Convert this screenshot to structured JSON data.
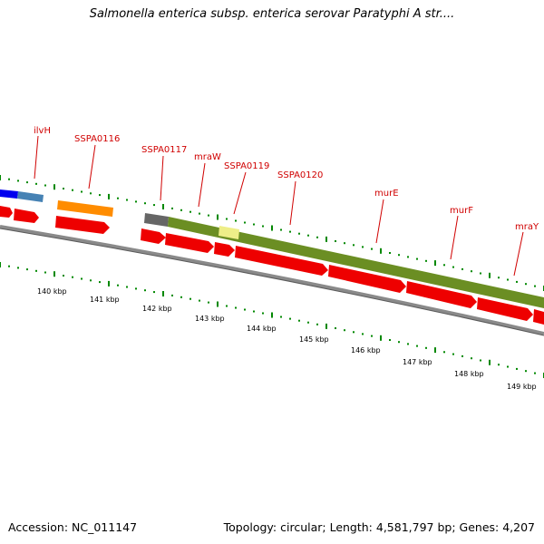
{
  "title": "Salmonella enterica subsp. enterica serovar Paratyphi A str....",
  "footer": {
    "accession": "Accession: NC_011147",
    "summary": "Topology: circular; Length: 4,581,797 bp; Genes: 4,207"
  },
  "genome_map": {
    "labels": [
      {
        "id": "ilvH",
        "text": "ilvH"
      },
      {
        "id": "SSPA0116",
        "text": "SSPA0116"
      },
      {
        "id": "SSPA0117",
        "text": "SSPA0117"
      },
      {
        "id": "mraW",
        "text": "mraW"
      },
      {
        "id": "SSPA0119",
        "text": "SSPA0119"
      },
      {
        "id": "SSPA0120",
        "text": "SSPA0120"
      },
      {
        "id": "murE",
        "text": "murE"
      },
      {
        "id": "murF",
        "text": "murF"
      },
      {
        "id": "mraY",
        "text": "mraY"
      }
    ],
    "scale_ticks": [
      "140 kbp",
      "141 kbp",
      "142 kbp",
      "143 kbp",
      "144 kbp",
      "145 kbp",
      "146 kbp",
      "147 kbp",
      "148 kbp",
      "149 kbp"
    ],
    "colors": {
      "gene_label": "#d00000",
      "arrow_red": "#ee0000",
      "operon_green": "#6b8e23",
      "orange": "#ff8c00",
      "blue": "#0000ee",
      "steelblue": "#4682b4",
      "gray": "#666666",
      "pale_yellow": "#eeee88",
      "tick_green": "#008800",
      "backbone": "#7a7a7a"
    }
  }
}
